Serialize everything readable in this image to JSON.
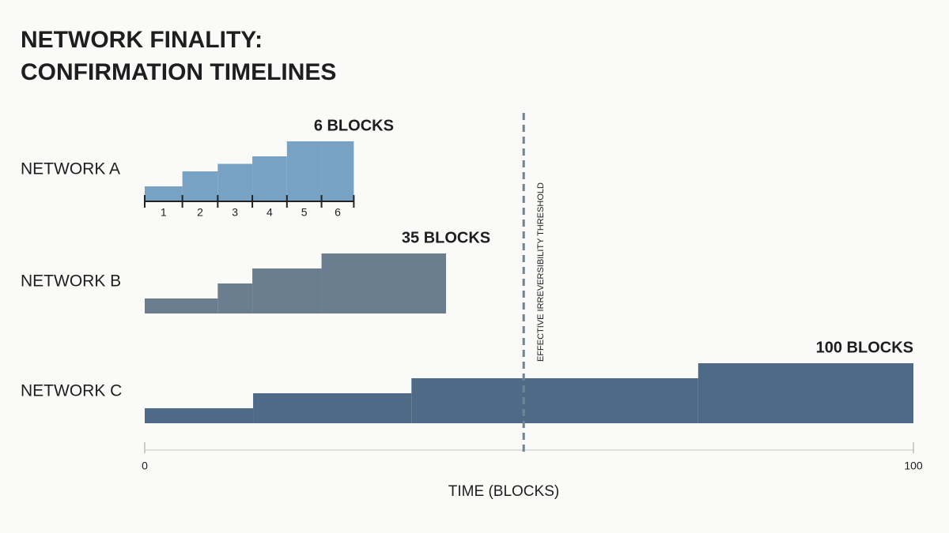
{
  "chart_data": {
    "type": "step",
    "title": [
      "NETWORK FINALITY:",
      "CONFIRMATION TIMELINES"
    ],
    "xlabel": "TIME (BLOCKS)",
    "xlim": [
      0,
      100
    ],
    "xticks": [
      0,
      100
    ],
    "ylim": [
      0,
      4
    ],
    "threshold": {
      "value": 49.3,
      "label": "EFFECTIVE IRREVERSIBILITY THRESHOLD"
    },
    "series": [
      {
        "name": "NETWORK A",
        "label": "6 BLOCKS",
        "color": "#78a2c3",
        "edges": [
          0,
          4.9,
          9.5,
          14,
          18.5,
          23,
          27.2
        ],
        "values": [
          1,
          2,
          2.5,
          3,
          4,
          4
        ],
        "block_ticks": [
          1,
          2,
          3,
          4,
          5,
          6
        ]
      },
      {
        "name": "NETWORK B",
        "label": "35 BLOCKS",
        "color": "#6b7e8f",
        "edges": [
          0,
          9.5,
          14,
          23,
          39.2
        ],
        "values": [
          1,
          2,
          3,
          4
        ]
      },
      {
        "name": "NETWORK C",
        "label": "100 BLOCKS",
        "color": "#4f6a87",
        "edges": [
          0,
          14.1,
          34.7,
          72,
          100
        ],
        "values": [
          1,
          2,
          3,
          4
        ]
      }
    ]
  }
}
